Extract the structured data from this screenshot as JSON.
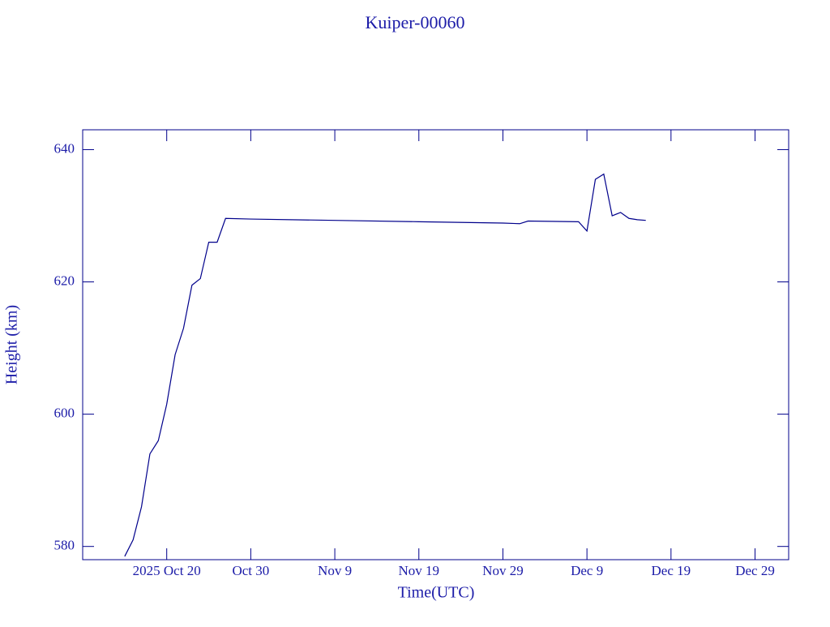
{
  "chart_data": {
    "type": "line",
    "title": "Kuiper-00060",
    "xlabel": "Time(UTC)",
    "ylabel": "Height (km)",
    "color": "#00008b",
    "xlim": [
      "2025-10-10",
      "2026-01-02"
    ],
    "ylim": [
      578,
      643
    ],
    "xticks": [
      {
        "value": "2025-10-20",
        "label": "2025 Oct 20"
      },
      {
        "value": "2025-10-30",
        "label": "Oct 30"
      },
      {
        "value": "2025-11-09",
        "label": "Nov  9"
      },
      {
        "value": "2025-11-19",
        "label": "Nov 19"
      },
      {
        "value": "2025-11-29",
        "label": "Nov 29"
      },
      {
        "value": "2025-12-09",
        "label": "Dec  9"
      },
      {
        "value": "2025-12-19",
        "label": "Dec 19"
      },
      {
        "value": "2025-12-29",
        "label": "Dec 29"
      }
    ],
    "yticks": [
      580,
      600,
      620,
      640
    ],
    "x": [
      "2025-10-15",
      "2025-10-16",
      "2025-10-17",
      "2025-10-18",
      "2025-10-19",
      "2025-10-20",
      "2025-10-21",
      "2025-10-22",
      "2025-10-23",
      "2025-10-24",
      "2025-10-25",
      "2025-10-26",
      "2025-10-27",
      "2025-10-30",
      "2025-11-09",
      "2025-11-19",
      "2025-11-29",
      "2025-12-01",
      "2025-12-02",
      "2025-12-08",
      "2025-12-09",
      "2025-12-10",
      "2025-12-11",
      "2025-12-12",
      "2025-12-13",
      "2025-12-14",
      "2025-12-15",
      "2025-12-16"
    ],
    "values": [
      578.5,
      581,
      586,
      594,
      596,
      601.5,
      609,
      613,
      619.5,
      620.5,
      626,
      626,
      629.6,
      629.5,
      629.3,
      629.1,
      628.9,
      628.8,
      629.2,
      629.1,
      627.7,
      635.5,
      636.3,
      630,
      630.5,
      629.6,
      629.4,
      629.3
    ]
  }
}
